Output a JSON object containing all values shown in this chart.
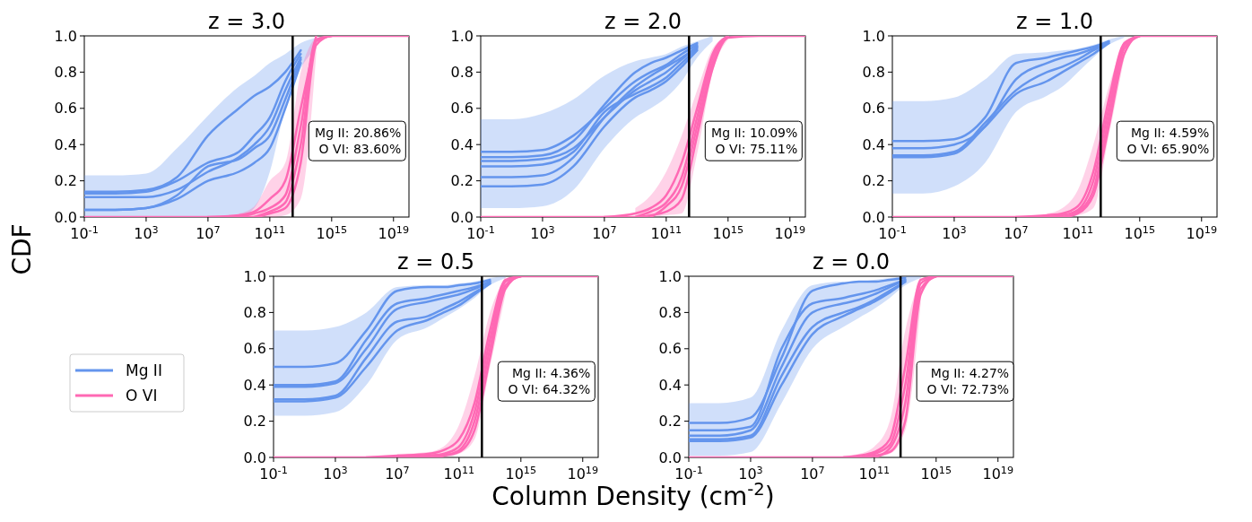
{
  "chart_data": [
    {
      "type": "line",
      "title": "z = 3.0",
      "ylabel": "CDF",
      "log": "x",
      "xlim": [
        0.1,
        1e+20
      ],
      "ylim": [
        0,
        1
      ],
      "xticks": [
        {
          "value": 0.1,
          "label": "10$^{-1}$"
        },
        {
          "value": 1000,
          "label": "10$^{3}$"
        },
        {
          "value": 10000000.0,
          "label": "10$^{7}$"
        },
        {
          "value": 100000000000.0,
          "label": "10$^{11}$"
        },
        {
          "value": 1000000000000000.0,
          "label": "10$^{15}$"
        },
        {
          "value": 1e+19,
          "label": "10$^{19}$"
        }
      ],
      "yticks": [
        {
          "value": 0,
          "label": "0.0"
        },
        {
          "value": 0.2,
          "label": "0.2"
        },
        {
          "value": 0.4,
          "label": "0.4"
        },
        {
          "value": 0.6,
          "label": "0.6"
        },
        {
          "value": 0.8,
          "label": "0.8"
        },
        {
          "value": 1,
          "label": "1.0"
        }
      ],
      "x": [
        0.1,
        10,
        1000,
        100000.0,
        10000000.0,
        1000000000.0,
        10000000000.0,
        100000000000.0,
        1000000000000.0,
        10000000000000.0,
        100000000000000.0,
        1000000000000000.0,
        1e+17,
        1e+19,
        1e+20
      ],
      "ref_lines": [
        {
          "axis": "x",
          "value": 3000000000000.0,
          "color": "#000000"
        }
      ],
      "annotations": [
        "Mg II: 20.86%",
        "O VI: 83.60%"
      ],
      "series": [
        {
          "color": "#6495ed",
          "values": [
            0.14,
            0.14,
            0.15,
            0.22,
            0.45,
            0.6,
            0.67,
            0.72,
            0.8,
            0.92,
            null,
            null,
            null,
            null,
            null
          ],
          "lower": [
            0,
            0,
            0,
            0,
            0,
            0,
            0.05,
            0.25,
            0.6,
            0.82,
            0.93,
            null,
            null,
            null,
            null
          ],
          "upper": [
            0.23,
            0.23,
            0.24,
            0.38,
            0.56,
            0.72,
            0.78,
            0.85,
            0.9,
            0.96,
            0.99,
            null,
            null,
            null,
            null
          ]
        },
        {
          "color": "#6495ed",
          "values": [
            0.13,
            0.13,
            0.14,
            0.2,
            0.3,
            0.36,
            0.45,
            0.55,
            0.75,
            0.9,
            null,
            null,
            null,
            null,
            null
          ]
        },
        {
          "color": "#6495ed",
          "values": [
            0.11,
            0.11,
            0.11,
            0.15,
            0.25,
            0.33,
            0.4,
            0.5,
            0.7,
            0.88,
            null,
            null,
            null,
            null,
            null
          ]
        },
        {
          "color": "#6495ed",
          "values": [
            0.04,
            0.04,
            0.05,
            0.12,
            0.28,
            0.32,
            0.38,
            0.45,
            0.65,
            0.87,
            null,
            null,
            null,
            null,
            null
          ]
        },
        {
          "color": "#6495ed",
          "values": [
            0.04,
            0.04,
            0.05,
            0.1,
            0.2,
            0.25,
            0.3,
            0.38,
            0.6,
            0.85,
            null,
            null,
            null,
            null,
            null
          ]
        },
        {
          "color": "#ff69b4",
          "values": [
            null,
            null,
            null,
            null,
            0,
            0.01,
            0.03,
            0.1,
            0.2,
            0.6,
            1,
            null,
            null,
            null,
            null
          ],
          "lower": [
            null,
            null,
            null,
            null,
            null,
            0,
            0,
            0,
            0.01,
            0.1,
            0.9,
            null,
            null,
            null,
            null
          ],
          "upper": [
            null,
            null,
            null,
            null,
            null,
            0.02,
            0.06,
            0.2,
            0.3,
            0.8,
            1,
            null,
            null,
            null,
            null
          ]
        },
        {
          "color": "#ff69b4",
          "values": [
            null,
            null,
            null,
            null,
            null,
            0,
            0.02,
            0.05,
            0.12,
            0.5,
            0.98,
            1,
            null,
            null,
            null
          ]
        },
        {
          "color": "#ff69b4",
          "values": [
            null,
            null,
            null,
            null,
            null,
            null,
            0,
            0.03,
            0.08,
            0.4,
            0.97,
            1,
            null,
            null,
            null
          ]
        },
        {
          "color": "#ff69b4",
          "values": [
            0,
            0,
            0,
            0,
            0,
            0,
            0,
            0.02,
            0.05,
            0.3,
            0.95,
            1,
            1,
            1,
            1
          ]
        }
      ]
    },
    {
      "type": "line",
      "title": "z = 2.0",
      "log": "x",
      "xlim": [
        0.1,
        1e+20
      ],
      "ylim": [
        0,
        1
      ],
      "xticks": [
        {
          "value": 0.1,
          "label": "10$^{-1}$"
        },
        {
          "value": 1000,
          "label": "10$^{3}$"
        },
        {
          "value": 10000000.0,
          "label": "10$^{7}$"
        },
        {
          "value": 100000000000.0,
          "label": "10$^{11}$"
        },
        {
          "value": 1000000000000000.0,
          "label": "10$^{15}$"
        },
        {
          "value": 1e+19,
          "label": "10$^{19}$"
        }
      ],
      "yticks": [
        {
          "value": 0,
          "label": "0.0"
        },
        {
          "value": 0.2,
          "label": "0.2"
        },
        {
          "value": 0.4,
          "label": "0.4"
        },
        {
          "value": 0.6,
          "label": "0.6"
        },
        {
          "value": 0.8,
          "label": "0.8"
        },
        {
          "value": 1,
          "label": "1.0"
        }
      ],
      "x": [
        0.1,
        10,
        1000,
        100000.0,
        10000000.0,
        1000000000.0,
        10000000000.0,
        100000000000.0,
        1000000000000.0,
        10000000000000.0,
        100000000000000.0,
        1000000000000000.0,
        1e+17,
        1e+19,
        1e+20
      ],
      "ref_lines": [
        {
          "axis": "x",
          "value": 3000000000000.0,
          "color": "#000000"
        }
      ],
      "annotations": [
        "Mg II: 10.09%",
        "O VI: 75.11%"
      ],
      "series": [
        {
          "color": "#6495ed",
          "values": [
            0.36,
            0.36,
            0.37,
            0.45,
            0.6,
            0.75,
            0.8,
            0.84,
            0.9,
            0.95,
            null,
            null,
            null,
            null,
            null
          ],
          "lower": [
            0.05,
            0.05,
            0.06,
            0.15,
            0.38,
            0.55,
            0.6,
            0.66,
            0.75,
            0.88,
            0.97,
            null,
            null,
            null,
            null
          ],
          "upper": [
            0.54,
            0.54,
            0.57,
            0.65,
            0.78,
            0.86,
            0.88,
            0.9,
            0.94,
            0.97,
            1,
            null,
            null,
            null,
            null
          ]
        },
        {
          "color": "#6495ed",
          "values": [
            0.33,
            0.33,
            0.34,
            0.42,
            0.62,
            0.8,
            0.85,
            0.88,
            0.92,
            0.96,
            null,
            null,
            null,
            null,
            null
          ]
        },
        {
          "color": "#6495ed",
          "values": [
            0.31,
            0.31,
            0.32,
            0.38,
            0.55,
            0.7,
            0.75,
            0.8,
            0.87,
            0.94,
            null,
            null,
            null,
            null,
            null
          ]
        },
        {
          "color": "#6495ed",
          "values": [
            0.28,
            0.28,
            0.29,
            0.36,
            0.58,
            0.68,
            0.72,
            0.77,
            0.85,
            0.93,
            null,
            null,
            null,
            null,
            null
          ]
        },
        {
          "color": "#6495ed",
          "values": [
            0.22,
            0.22,
            0.23,
            0.33,
            0.55,
            0.72,
            0.78,
            0.83,
            0.88,
            0.94,
            null,
            null,
            null,
            null,
            null
          ]
        },
        {
          "color": "#6495ed",
          "values": [
            0.17,
            0.17,
            0.18,
            0.28,
            0.5,
            0.66,
            0.7,
            0.75,
            0.83,
            0.92,
            null,
            null,
            null,
            null,
            null
          ]
        },
        {
          "color": "#ff69b4",
          "values": [
            null,
            null,
            null,
            null,
            0,
            0.02,
            0.05,
            0.12,
            0.3,
            0.6,
            0.9,
            1,
            null,
            null,
            null
          ],
          "lower": [
            null,
            null,
            null,
            null,
            null,
            0,
            0,
            0.01,
            0.02,
            0.35,
            0.8,
            0.98,
            null,
            null,
            null
          ],
          "upper": [
            null,
            null,
            null,
            null,
            null,
            0.05,
            0.12,
            0.25,
            0.45,
            0.7,
            0.93,
            1,
            null,
            null,
            null
          ]
        },
        {
          "color": "#ff69b4",
          "values": [
            null,
            null,
            null,
            null,
            null,
            0,
            0.03,
            0.08,
            0.22,
            0.55,
            0.88,
            1,
            null,
            null,
            null
          ]
        },
        {
          "color": "#ff69b4",
          "values": [
            null,
            null,
            null,
            null,
            null,
            null,
            0,
            0.06,
            0.17,
            0.5,
            0.85,
            1,
            null,
            null,
            null
          ]
        },
        {
          "color": "#ff69b4",
          "values": [
            0,
            0,
            0,
            0,
            0,
            0,
            0.01,
            0.03,
            0.1,
            0.45,
            0.82,
            0.99,
            1,
            1,
            1
          ]
        }
      ]
    },
    {
      "type": "line",
      "title": "z = 1.0",
      "log": "x",
      "xlim": [
        0.1,
        1e+20
      ],
      "ylim": [
        0,
        1
      ],
      "xticks": [
        {
          "value": 0.1,
          "label": "10$^{-1}$"
        },
        {
          "value": 1000,
          "label": "10$^{3}$"
        },
        {
          "value": 10000000.0,
          "label": "10$^{7}$"
        },
        {
          "value": 100000000000.0,
          "label": "10$^{11}$"
        },
        {
          "value": 1000000000000000.0,
          "label": "10$^{15}$"
        },
        {
          "value": 1e+19,
          "label": "10$^{19}$"
        }
      ],
      "yticks": [
        {
          "value": 0,
          "label": "0.0"
        },
        {
          "value": 0.2,
          "label": "0.2"
        },
        {
          "value": 0.4,
          "label": "0.4"
        },
        {
          "value": 0.6,
          "label": "0.6"
        },
        {
          "value": 0.8,
          "label": "0.8"
        },
        {
          "value": 1,
          "label": "1.0"
        }
      ],
      "x": [
        0.1,
        10,
        1000,
        100000.0,
        10000000.0,
        1000000000.0,
        10000000000.0,
        100000000000.0,
        1000000000000.0,
        10000000000000.0,
        100000000000000.0,
        1000000000000000.0,
        1e+17,
        1e+19,
        1e+20
      ],
      "ref_lines": [
        {
          "axis": "x",
          "value": 3000000000000.0,
          "color": "#000000"
        }
      ],
      "annotations": [
        "Mg II: 4.59%",
        "O VI: 65.90%"
      ],
      "series": [
        {
          "color": "#6495ed",
          "values": [
            0.42,
            0.42,
            0.43,
            0.55,
            0.85,
            0.88,
            0.9,
            0.92,
            0.94,
            0.97,
            null,
            null,
            null,
            null,
            null
          ],
          "lower": [
            0.13,
            0.13,
            0.17,
            0.3,
            0.58,
            0.67,
            0.72,
            0.8,
            0.88,
            0.95,
            0.99,
            null,
            null,
            null,
            null
          ],
          "upper": [
            0.64,
            0.64,
            0.66,
            0.76,
            0.9,
            0.91,
            0.92,
            0.93,
            0.95,
            0.98,
            1,
            null,
            null,
            null,
            null
          ]
        },
        {
          "color": "#6495ed",
          "values": [
            0.38,
            0.38,
            0.4,
            0.5,
            0.76,
            0.85,
            0.88,
            0.9,
            0.93,
            0.97,
            null,
            null,
            null,
            null,
            null
          ]
        },
        {
          "color": "#6495ed",
          "values": [
            0.34,
            0.34,
            0.36,
            0.52,
            0.7,
            0.8,
            0.83,
            0.87,
            0.92,
            0.96,
            null,
            null,
            null,
            null,
            null
          ]
        },
        {
          "color": "#6495ed",
          "values": [
            0.33,
            0.33,
            0.35,
            0.5,
            0.68,
            0.75,
            0.8,
            0.85,
            0.9,
            0.96,
            null,
            null,
            null,
            null,
            null
          ]
        },
        {
          "color": "#ff69b4",
          "values": [
            null,
            null,
            null,
            null,
            0,
            0.01,
            0.02,
            0.06,
            0.25,
            0.65,
            0.96,
            1,
            null,
            null,
            null
          ],
          "lower": [
            null,
            null,
            null,
            null,
            null,
            0,
            0,
            0.01,
            0.05,
            0.45,
            0.88,
            null,
            null,
            null,
            null
          ],
          "upper": [
            null,
            null,
            null,
            null,
            null,
            0.02,
            0.05,
            0.15,
            0.4,
            0.72,
            0.98,
            null,
            null,
            null,
            null
          ]
        },
        {
          "color": "#ff69b4",
          "values": [
            null,
            null,
            null,
            null,
            null,
            0,
            0.01,
            0.04,
            0.2,
            0.6,
            0.95,
            1,
            null,
            null,
            null
          ]
        },
        {
          "color": "#ff69b4",
          "values": [
            null,
            null,
            null,
            null,
            null,
            null,
            0,
            0.03,
            0.15,
            0.55,
            0.93,
            1,
            null,
            null,
            null
          ]
        },
        {
          "color": "#ff69b4",
          "values": [
            0,
            0,
            0,
            0,
            0,
            0,
            0,
            0.02,
            0.12,
            0.5,
            0.9,
            1,
            1,
            1,
            1
          ]
        }
      ]
    },
    {
      "type": "line",
      "title": "z = 0.5",
      "xlabel": "Column Density (cm$^{-2}$)",
      "legend": "left",
      "log": "x",
      "xlim": [
        0.1,
        1e+20
      ],
      "ylim": [
        0,
        1
      ],
      "xticks": [
        {
          "value": 0.1,
          "label": "10$^{-1}$"
        },
        {
          "value": 1000,
          "label": "10$^{3}$"
        },
        {
          "value": 10000000.0,
          "label": "10$^{7}$"
        },
        {
          "value": 100000000000.0,
          "label": "10$^{11}$"
        },
        {
          "value": 1000000000000000.0,
          "label": "10$^{15}$"
        },
        {
          "value": 1e+19,
          "label": "10$^{19}$"
        }
      ],
      "yticks": [
        {
          "value": 0,
          "label": "0.0"
        },
        {
          "value": 0.2,
          "label": "0.2"
        },
        {
          "value": 0.4,
          "label": "0.4"
        },
        {
          "value": 0.6,
          "label": "0.6"
        },
        {
          "value": 0.8,
          "label": "0.8"
        },
        {
          "value": 1,
          "label": "1.0"
        }
      ],
      "x": [
        0.1,
        10,
        1000,
        100000.0,
        10000000.0,
        1000000000.0,
        10000000000.0,
        100000000000.0,
        1000000000000.0,
        10000000000000.0,
        100000000000000.0,
        1000000000000000.0,
        1e+17,
        1e+19,
        1e+20
      ],
      "ref_lines": [
        {
          "axis": "x",
          "value": 3000000000000.0,
          "color": "#000000"
        }
      ],
      "annotations": [
        "Mg II: 4.36%",
        "O VI: 64.32%"
      ],
      "series": [
        {
          "name": "Mg II",
          "color": "#6495ed",
          "values": [
            0.5,
            0.5,
            0.52,
            0.7,
            0.92,
            0.94,
            0.94,
            0.95,
            0.96,
            0.98,
            null,
            null,
            null,
            null,
            null
          ],
          "lower": [
            0.23,
            0.23,
            0.25,
            0.4,
            0.65,
            0.72,
            0.77,
            0.82,
            0.88,
            0.95,
            0.99,
            null,
            null,
            null,
            null
          ],
          "upper": [
            0.7,
            0.7,
            0.72,
            0.8,
            0.94,
            0.95,
            0.95,
            0.96,
            0.97,
            0.99,
            1,
            null,
            null,
            null,
            null
          ]
        },
        {
          "color": "#6495ed",
          "values": [
            0.4,
            0.4,
            0.42,
            0.65,
            0.85,
            0.88,
            0.9,
            0.92,
            0.94,
            0.97,
            null,
            null,
            null,
            null,
            null
          ]
        },
        {
          "color": "#6495ed",
          "values": [
            0.39,
            0.39,
            0.41,
            0.6,
            0.82,
            0.86,
            0.88,
            0.9,
            0.93,
            0.97,
            null,
            null,
            null,
            null,
            null
          ]
        },
        {
          "color": "#6495ed",
          "values": [
            0.32,
            0.32,
            0.34,
            0.55,
            0.75,
            0.78,
            0.82,
            0.86,
            0.91,
            0.96,
            null,
            null,
            null,
            null,
            null
          ]
        },
        {
          "color": "#6495ed",
          "values": [
            0.31,
            0.31,
            0.33,
            0.5,
            0.7,
            0.76,
            0.8,
            0.84,
            0.9,
            0.96,
            null,
            null,
            null,
            null,
            null
          ]
        },
        {
          "name": "O VI",
          "color": "#ff69b4",
          "values": [
            null,
            null,
            null,
            0,
            0.01,
            0.02,
            0.04,
            0.1,
            0.3,
            0.7,
            0.98,
            1,
            null,
            null,
            null
          ],
          "lower": [
            null,
            null,
            null,
            null,
            0,
            0,
            0,
            0.02,
            0.1,
            0.5,
            0.9,
            null,
            null,
            null,
            null
          ],
          "upper": [
            null,
            null,
            null,
            null,
            0.02,
            0.03,
            0.06,
            0.18,
            0.45,
            0.8,
            1,
            null,
            null,
            null,
            null
          ]
        },
        {
          "color": "#ff69b4",
          "values": [
            null,
            null,
            null,
            null,
            0,
            0.01,
            0.02,
            0.06,
            0.25,
            0.65,
            0.97,
            1,
            null,
            null,
            null
          ]
        },
        {
          "color": "#ff69b4",
          "values": [
            null,
            null,
            null,
            null,
            null,
            0,
            0.01,
            0.04,
            0.2,
            0.6,
            0.95,
            1,
            null,
            null,
            null
          ]
        },
        {
          "color": "#ff69b4",
          "values": [
            0,
            0,
            0,
            0,
            0,
            0,
            0.01,
            0.03,
            0.15,
            0.55,
            0.93,
            1,
            1,
            1,
            1
          ]
        }
      ]
    },
    {
      "type": "line",
      "title": "z = 0.0",
      "log": "x",
      "xlim": [
        0.1,
        1e+20
      ],
      "ylim": [
        0,
        1
      ],
      "xticks": [
        {
          "value": 0.1,
          "label": "10$^{-1}$"
        },
        {
          "value": 1000,
          "label": "10$^{3}$"
        },
        {
          "value": 10000000.0,
          "label": "10$^{7}$"
        },
        {
          "value": 100000000000.0,
          "label": "10$^{11}$"
        },
        {
          "value": 1000000000000000.0,
          "label": "10$^{15}$"
        },
        {
          "value": 1e+19,
          "label": "10$^{19}$"
        }
      ],
      "yticks": [
        {
          "value": 0,
          "label": "0.0"
        },
        {
          "value": 0.2,
          "label": "0.2"
        },
        {
          "value": 0.4,
          "label": "0.4"
        },
        {
          "value": 0.6,
          "label": "0.6"
        },
        {
          "value": 0.8,
          "label": "0.8"
        },
        {
          "value": 1,
          "label": "1.0"
        }
      ],
      "x": [
        0.1,
        10,
        1000,
        100000.0,
        10000000.0,
        1000000000.0,
        10000000000.0,
        100000000000.0,
        1000000000000.0,
        10000000000000.0,
        100000000000000.0,
        1000000000000000.0,
        1e+17,
        1e+19,
        1e+20
      ],
      "ref_lines": [
        {
          "axis": "x",
          "value": 5000000000000.0,
          "color": "#000000"
        }
      ],
      "annotations": [
        "Mg II: 4.27%",
        "O VI: 72.73%"
      ],
      "series": [
        {
          "color": "#6495ed",
          "values": [
            0.19,
            0.19,
            0.22,
            0.55,
            0.92,
            0.96,
            0.97,
            0.97,
            0.98,
            0.99,
            null,
            null,
            null,
            null,
            null
          ],
          "lower": [
            0.01,
            0.01,
            0.03,
            0.3,
            0.6,
            0.72,
            0.77,
            0.82,
            0.88,
            0.95,
            0.99,
            null,
            null,
            null,
            null
          ],
          "upper": [
            0.3,
            0.3,
            0.33,
            0.7,
            0.95,
            0.97,
            0.97,
            0.98,
            0.99,
            1,
            1,
            null,
            null,
            null,
            null
          ]
        },
        {
          "color": "#6495ed",
          "values": [
            0.15,
            0.15,
            0.17,
            0.6,
            0.85,
            0.88,
            0.9,
            0.92,
            0.95,
            0.98,
            null,
            null,
            null,
            null,
            null
          ]
        },
        {
          "color": "#6495ed",
          "values": [
            0.12,
            0.12,
            0.15,
            0.5,
            0.8,
            0.85,
            0.87,
            0.9,
            0.94,
            0.98,
            null,
            null,
            null,
            null,
            null
          ]
        },
        {
          "color": "#6495ed",
          "values": [
            0.1,
            0.1,
            0.12,
            0.45,
            0.72,
            0.8,
            0.83,
            0.87,
            0.92,
            0.97,
            null,
            null,
            null,
            null,
            null
          ]
        },
        {
          "color": "#6495ed",
          "values": [
            0.09,
            0.09,
            0.11,
            0.4,
            0.68,
            0.78,
            0.82,
            0.86,
            0.91,
            0.97,
            null,
            null,
            null,
            null,
            null
          ]
        },
        {
          "color": "#ff69b4",
          "values": [
            null,
            null,
            null,
            null,
            null,
            0,
            0.01,
            0.03,
            0.1,
            0.5,
            0.98,
            1,
            null,
            null,
            null
          ],
          "lower": [
            null,
            null,
            null,
            null,
            null,
            0,
            0,
            0,
            0.02,
            0.15,
            0.85,
            null,
            null,
            null,
            null
          ],
          "upper": [
            null,
            null,
            null,
            null,
            null,
            0.01,
            0.02,
            0.06,
            0.2,
            0.7,
            1,
            null,
            null,
            null,
            null
          ]
        },
        {
          "color": "#ff69b4",
          "values": [
            null,
            null,
            null,
            null,
            null,
            null,
            0,
            0.02,
            0.07,
            0.4,
            0.96,
            1,
            null,
            null,
            null
          ]
        },
        {
          "color": "#ff69b4",
          "values": [
            null,
            null,
            null,
            null,
            null,
            null,
            null,
            0,
            0.05,
            0.3,
            0.93,
            1,
            null,
            null,
            null
          ]
        },
        {
          "color": "#ff69b4",
          "values": [
            0,
            0,
            0,
            0,
            0,
            0,
            0,
            0.01,
            0.03,
            0.2,
            0.9,
            1,
            1,
            1,
            1
          ]
        }
      ]
    }
  ]
}
